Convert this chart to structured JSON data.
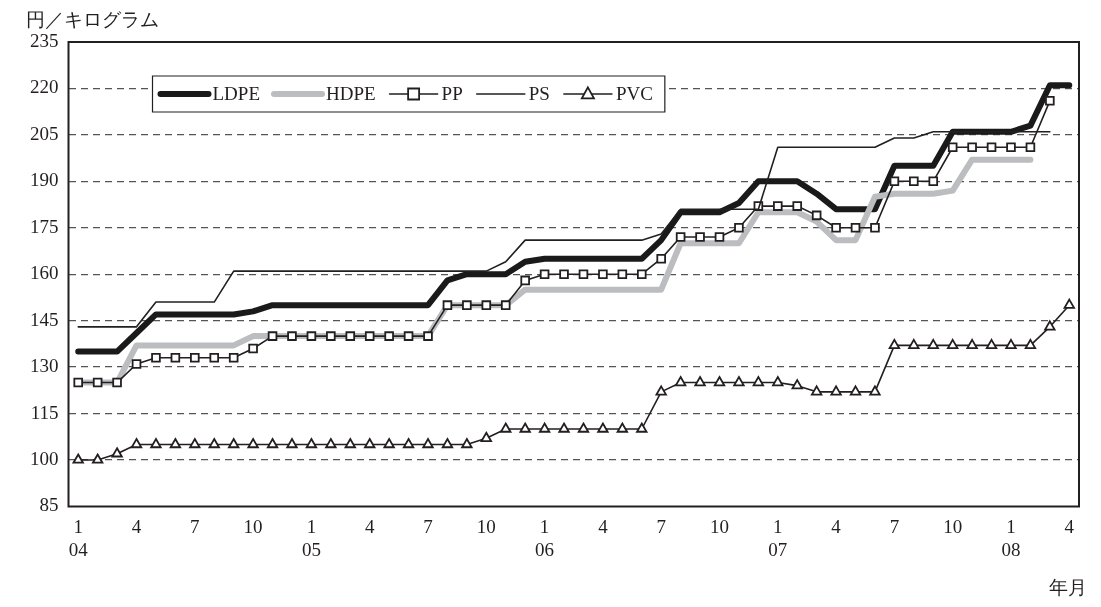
{
  "chart_data": {
    "type": "line",
    "ylabel": "円／キログラム",
    "xlabel": "年月",
    "categories": [
      "1\n04",
      null,
      null,
      "4",
      null,
      null,
      "7",
      null,
      null,
      "10",
      null,
      null,
      "1\n05",
      null,
      null,
      "4",
      null,
      null,
      "7",
      null,
      null,
      "10",
      null,
      null,
      "1\n06",
      null,
      null,
      "4",
      null,
      null,
      "7",
      null,
      null,
      "10",
      null,
      null,
      "1\n07",
      null,
      null,
      "4",
      null,
      null,
      "7",
      null,
      null,
      "10",
      null,
      null,
      "1\n08",
      null,
      null,
      "4"
    ],
    "ylim": [
      85,
      235
    ],
    "yticks": [
      85,
      100,
      115,
      130,
      145,
      160,
      175,
      190,
      205,
      220,
      235
    ],
    "grid": "y",
    "legend": "top left",
    "series": [
      {
        "name": "LDPE",
        "color": "#1a1a1a",
        "marker": "none",
        "values": [
          135,
          135,
          135,
          141,
          147,
          147,
          147,
          147,
          147,
          148,
          150,
          150,
          150,
          150,
          150,
          150,
          150,
          150,
          150,
          158,
          160,
          160,
          160,
          164,
          165,
          165,
          165,
          165,
          165,
          165,
          171,
          180,
          180,
          180,
          183,
          190,
          190,
          190,
          186,
          181,
          181,
          181,
          195,
          195,
          195,
          206,
          206,
          206,
          206,
          208,
          221,
          221
        ]
      },
      {
        "name": "HDPE",
        "color": "#bcbdc0",
        "marker": "none",
        "values": [
          125,
          125,
          125,
          137,
          137,
          137,
          137,
          137,
          137,
          140,
          140,
          140,
          140,
          140,
          140,
          140,
          140,
          140,
          140,
          150,
          150,
          150,
          150,
          155,
          155,
          155,
          155,
          155,
          155,
          155,
          155,
          170,
          170,
          170,
          170,
          180,
          180,
          180,
          177,
          171,
          171,
          185,
          186,
          186,
          186,
          187,
          197,
          197,
          197,
          197,
          null,
          null
        ]
      },
      {
        "name": "PP",
        "color": "#231f20",
        "marker": "square",
        "values": [
          125,
          125,
          125,
          131,
          133,
          133,
          133,
          133,
          133,
          136,
          140,
          140,
          140,
          140,
          140,
          140,
          140,
          140,
          140,
          150,
          150,
          150,
          150,
          158,
          160,
          160,
          160,
          160,
          160,
          160,
          165,
          172,
          172,
          172,
          175,
          182,
          182,
          182,
          179,
          175,
          175,
          175,
          190,
          190,
          190,
          201,
          201,
          201,
          201,
          201,
          216,
          null
        ]
      },
      {
        "name": "PS",
        "color": "#231f20",
        "marker": "none",
        "values": [
          143,
          143,
          143,
          143,
          151,
          151,
          151,
          151,
          161,
          161,
          161,
          161,
          161,
          161,
          161,
          161,
          161,
          161,
          161,
          161,
          161,
          161,
          164,
          171,
          171,
          171,
          171,
          171,
          171,
          171,
          173,
          181,
          181,
          181,
          181,
          181,
          201,
          201,
          201,
          201,
          201,
          201,
          204,
          204,
          206,
          206,
          206,
          206,
          206,
          206,
          206,
          null
        ]
      },
      {
        "name": "PVC",
        "color": "#231f20",
        "marker": "triangle",
        "values": [
          100,
          100,
          102,
          105,
          105,
          105,
          105,
          105,
          105,
          105,
          105,
          105,
          105,
          105,
          105,
          105,
          105,
          105,
          105,
          105,
          105,
          107,
          110,
          110,
          110,
          110,
          110,
          110,
          110,
          110,
          122,
          125,
          125,
          125,
          125,
          125,
          125,
          124,
          122,
          122,
          122,
          122,
          137,
          137,
          137,
          137,
          137,
          137,
          137,
          137,
          143,
          150
        ]
      }
    ]
  }
}
